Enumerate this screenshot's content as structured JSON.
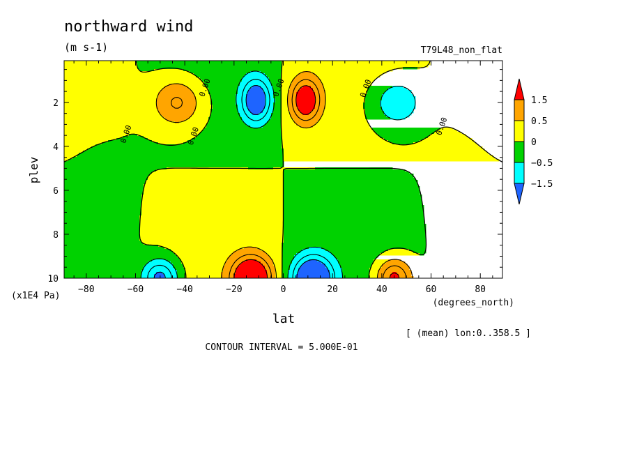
{
  "chart_data": {
    "type": "heatmap",
    "title": "northward wind",
    "units": "(m s-1)",
    "run_label": "T79L48_non_flat",
    "xlabel": "lat",
    "ylabel": "plev",
    "x_units": "(degrees_north)",
    "y_units": "(x1E4 Pa)",
    "xlim": [
      -89,
      89
    ],
    "ylim": [
      10,
      0.1
    ],
    "x_ticks": [
      {
        "value": -80,
        "label": "−80"
      },
      {
        "value": -60,
        "label": "−60"
      },
      {
        "value": -40,
        "label": "−40"
      },
      {
        "value": -20,
        "label": "−20"
      },
      {
        "value": 0,
        "label": "0"
      },
      {
        "value": 20,
        "label": "20"
      },
      {
        "value": 40,
        "label": "40"
      },
      {
        "value": 60,
        "label": "60"
      },
      {
        "value": 80,
        "label": "80"
      }
    ],
    "y_ticks": [
      {
        "value": 2,
        "label": "2"
      },
      {
        "value": 4,
        "label": "4"
      },
      {
        "value": 6,
        "label": "6"
      },
      {
        "value": 8,
        "label": "8"
      },
      {
        "value": 10,
        "label": "10"
      }
    ],
    "mean_label": "[ (mean) lon:0..358.5 ]",
    "contour_interval_label": "CONTOUR INTERVAL = 5.000E-01",
    "contour_line_label": "0.00",
    "contour_levels": [
      -1.5,
      -1,
      -0.5,
      0,
      0.5,
      1,
      1.5
    ],
    "colorbar": {
      "labels": [
        "1.5",
        "0.5",
        "0",
        "−0.5",
        "−1.5"
      ],
      "bands": [
        {
          "min": 1.5,
          "max": null,
          "color": "#ff0000"
        },
        {
          "min": 0.5,
          "max": 1.5,
          "color": "#ffa500"
        },
        {
          "min": 0,
          "max": 0.5,
          "color": "#ffff00"
        },
        {
          "min": -0.5,
          "max": 0,
          "color": "#00d200"
        },
        {
          "min": -1.5,
          "max": -0.5,
          "color": "#00ffff"
        },
        {
          "min": null,
          "max": -1.5,
          "color": "#1e64ff"
        }
      ]
    },
    "features": [
      {
        "lat": -75,
        "plev": 6.5,
        "amp": -0.08,
        "sx": 13,
        "sy": 4
      },
      {
        "lat": -43,
        "plev": 2.0,
        "amp": 1.2,
        "sx": 10,
        "sy": 1.1
      },
      {
        "lat": -11,
        "plev": 1.9,
        "amp": -2.2,
        "sx": 6,
        "sy": 1.0
      },
      {
        "lat": 9,
        "plev": 1.9,
        "amp": 2.2,
        "sx": 6,
        "sy": 1.0
      },
      {
        "lat": 46,
        "plev": 2.0,
        "amp": -1.0,
        "sx": 10,
        "sy": 1.1
      },
      {
        "lat": 73,
        "plev": 6.0,
        "amp": 0.1,
        "sx": 13,
        "sy": 4
      },
      {
        "lat": -50,
        "plev": 10.0,
        "amp": -1.8,
        "sx": 7,
        "sy": 0.85
      },
      {
        "lat": -13,
        "plev": 10.0,
        "amp": 2.8,
        "sx": 8,
        "sy": 1.0
      },
      {
        "lat": 12,
        "plev": 10.0,
        "amp": -2.8,
        "sx": 8,
        "sy": 1.0
      },
      {
        "lat": 45,
        "plev": 10.0,
        "amp": 1.8,
        "sx": 7,
        "sy": 0.85
      }
    ]
  }
}
